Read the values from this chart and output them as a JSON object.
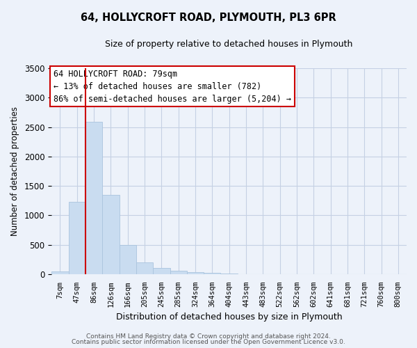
{
  "title": "64, HOLLYCROFT ROAD, PLYMOUTH, PL3 6PR",
  "subtitle": "Size of property relative to detached houses in Plymouth",
  "xlabel": "Distribution of detached houses by size in Plymouth",
  "ylabel": "Number of detached properties",
  "bar_labels": [
    "7sqm",
    "47sqm",
    "86sqm",
    "126sqm",
    "166sqm",
    "205sqm",
    "245sqm",
    "285sqm",
    "324sqm",
    "364sqm",
    "404sqm",
    "443sqm",
    "483sqm",
    "522sqm",
    "562sqm",
    "602sqm",
    "641sqm",
    "681sqm",
    "721sqm",
    "760sqm",
    "800sqm"
  ],
  "bar_values": [
    50,
    1230,
    2590,
    1350,
    500,
    200,
    110,
    55,
    30,
    20,
    10,
    0,
    0,
    0,
    0,
    0,
    0,
    0,
    0,
    0,
    0
  ],
  "bar_color": "#c9dcf0",
  "bar_edge_color": "#aac4de",
  "vline_color": "#cc0000",
  "vline_pos": 1.5,
  "ylim": [
    0,
    3500
  ],
  "yticks": [
    0,
    500,
    1000,
    1500,
    2000,
    2500,
    3000,
    3500
  ],
  "annotation_text": "64 HOLLYCROFT ROAD: 79sqm\n← 13% of detached houses are smaller (782)\n86% of semi-detached houses are larger (5,204) →",
  "annotation_box_color": "#ffffff",
  "annotation_border_color": "#cc0000",
  "footer_line1": "Contains HM Land Registry data © Crown copyright and database right 2024.",
  "footer_line2": "Contains public sector information licensed under the Open Government Licence v3.0.",
  "background_color": "#edf2fa",
  "plot_bg_color": "#edf2fa",
  "grid_color": "#c5d0e4"
}
